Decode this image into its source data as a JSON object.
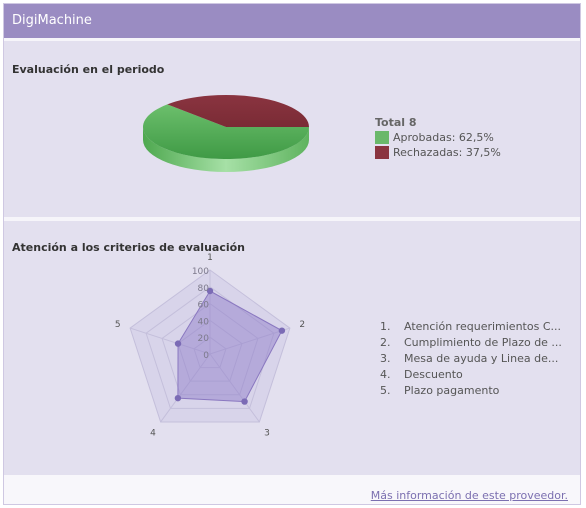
{
  "window": {
    "title": "DigiMachine"
  },
  "section1": {
    "title": "Evaluación en el periodo",
    "legend": {
      "total_label": "Total  8",
      "items": [
        {
          "label": "Aprobadas: 62,5%",
          "color": "#6ab86a"
        },
        {
          "label": "Rechazadas: 37,5%",
          "color": "#8a3440"
        }
      ]
    }
  },
  "section2": {
    "title": "Atención a los criterios de evaluación",
    "list": [
      {
        "num": "1.",
        "label": "Atención requerimientos C..."
      },
      {
        "num": "2.",
        "label": "Cumplimiento de Plazo de ..."
      },
      {
        "num": "3.",
        "label": "Mesa de ayuda y Linea de..."
      },
      {
        "num": "4.",
        "label": "Descuento"
      },
      {
        "num": "5.",
        "label": "Plazo pagamento"
      }
    ]
  },
  "footer": {
    "link": "Más información de este proveedor."
  },
  "chart_data": [
    {
      "type": "pie",
      "labels": [
        "Aprobadas",
        "Rechazadas"
      ],
      "values": [
        62.5,
        37.5
      ],
      "colors": [
        "#6ab86a",
        "#8a3440"
      ],
      "total": 8
    },
    {
      "type": "radar",
      "categories": [
        "1",
        "2",
        "3",
        "4",
        "5"
      ],
      "values": [
        75,
        90,
        70,
        65,
        40
      ],
      "ticks": [
        "0",
        "20",
        "40",
        "60",
        "80",
        "100"
      ],
      "range": [
        0,
        100
      ],
      "color": "#7b6bb5"
    }
  ]
}
